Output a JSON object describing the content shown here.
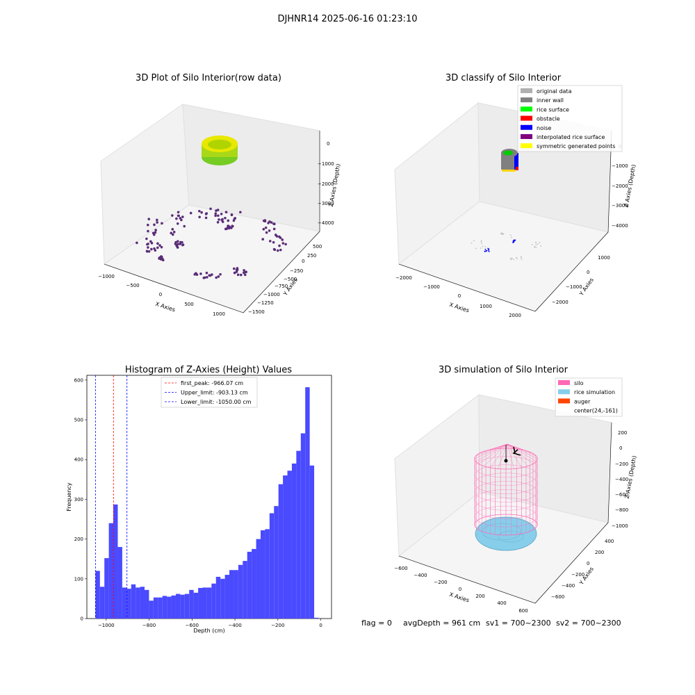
{
  "figure": {
    "suptitle": "DJHNR14 2025-06-16 01:23:10",
    "footer": {
      "flag": "flag = 0",
      "avg_depth": "avgDepth = 961 cm",
      "sv1": "sv1 = 700~2300",
      "sv2": "sv2 = 700~2300"
    }
  },
  "panels": {
    "raw": {
      "title": "3D Plot of Silo Interior(row data)",
      "xlabel": "X Axies",
      "ylabel": "Y Axies",
      "zlabel": "Z Axies (Depth)",
      "xticks": [
        "−1000",
        "−500",
        "0",
        "500",
        "1000"
      ],
      "yticks": [
        "500",
        "250",
        "0",
        "−250",
        "−500",
        "−750",
        "−1000",
        "−1250",
        "−1500"
      ],
      "zticks": [
        "0",
        "−1000",
        "−2000",
        "−3000",
        "−4000"
      ],
      "colors": {
        "top_ring": "#c8e000",
        "points": "#5a2d78"
      }
    },
    "classify": {
      "title": "3D classify of Silo Interior",
      "xlabel": "X Axies",
      "ylabel": "Y Axies",
      "zlabel": "Z Axies (Depth)",
      "xticks": [
        "−2000",
        "−1000",
        "0",
        "1000",
        "2000"
      ],
      "yticks": [
        "1000",
        "0",
        "−1000",
        "−2000"
      ],
      "zticks": [
        "0",
        "−1000",
        "−2000",
        "−3000",
        "−4000"
      ],
      "legend": [
        {
          "label": "original data",
          "color": "#b0b0b0"
        },
        {
          "label": "inner wall",
          "color": "#808080"
        },
        {
          "label": "rice surface",
          "color": "#00ff00"
        },
        {
          "label": "obstacle",
          "color": "#ff0000"
        },
        {
          "label": "noise",
          "color": "#0000ff"
        },
        {
          "label": "interpolated rice surface",
          "color": "#800080"
        },
        {
          "label": "symmetric generated points",
          "color": "#ffff00"
        }
      ]
    },
    "simulation": {
      "title": "3D simulation of Silo Interior",
      "xlabel": "X Axies",
      "ylabel": "Y Axies",
      "zlabel": "Z Axies (Depth)",
      "xticks": [
        "−600",
        "−400",
        "−200",
        "0",
        "200",
        "400",
        "600"
      ],
      "yticks": [
        "400",
        "200",
        "0",
        "−200",
        "−400",
        "−600"
      ],
      "zticks": [
        "200",
        "0",
        "−200",
        "−400",
        "−600",
        "−800",
        "−1000"
      ],
      "legend": [
        {
          "label": "silo",
          "color": "#ff69b4"
        },
        {
          "label": "rice simulation",
          "color": "#87ceeb"
        },
        {
          "label": "auger",
          "color": "#ff4500"
        },
        {
          "label": "center(24,-161)",
          "color": ""
        }
      ]
    }
  },
  "chart_data": {
    "type": "bar",
    "title": "Histogram of Z-Axies (Height) Values",
    "xlabel": "Depth (cm)",
    "ylabel": "Frequency",
    "xlim": [
      -1090,
      50
    ],
    "ylim": [
      0,
      612
    ],
    "xticks": [
      -1000,
      -800,
      -600,
      -400,
      -200,
      0
    ],
    "xtick_labels": [
      "−1000",
      "−800",
      "−600",
      "−400",
      "−200",
      "0"
    ],
    "yticks": [
      0,
      100,
      200,
      300,
      400,
      500,
      600
    ],
    "bin_start": -1050,
    "bin_width": 20.8,
    "bar_color": "#4a4aff",
    "values": [
      120,
      80,
      152,
      240,
      287,
      180,
      78,
      75,
      86,
      78,
      80,
      72,
      45,
      53,
      53,
      57,
      55,
      58,
      62,
      60,
      62,
      72,
      65,
      77,
      78,
      78,
      88,
      105,
      100,
      110,
      122,
      122,
      135,
      145,
      168,
      175,
      200,
      222,
      225,
      265,
      283,
      338,
      360,
      372,
      390,
      422,
      466,
      582,
      385,
      2
    ],
    "vlines": [
      {
        "label": "first_peak: -966.07 cm",
        "x": -966.07,
        "color": "#ff0000"
      },
      {
        "label": "Upper_limit: -903.13 cm",
        "x": -903.13,
        "color": "#0000ff"
      },
      {
        "label": "Lower_limit: -1050.00 cm",
        "x": -1050.0,
        "color": "#0000ff"
      }
    ],
    "legend_position": "upper-center"
  }
}
